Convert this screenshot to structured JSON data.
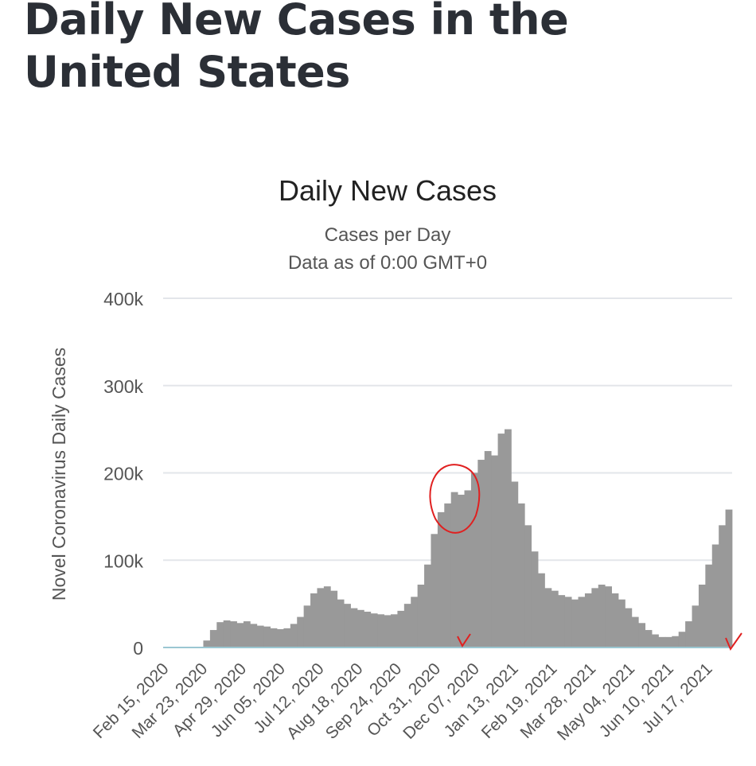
{
  "page": {
    "title": "Daily New Cases in the United States"
  },
  "annotations": {
    "highlight_color": "#e02020"
  },
  "chart_data": {
    "type": "bar",
    "title": "Daily New Cases",
    "subtitle_lines": [
      "Cases per Day",
      "Data as of 0:00 GMT+0"
    ],
    "xlabel": "",
    "ylabel": "Novel Coronavirus Daily Cases",
    "ylim": [
      0,
      400000
    ],
    "y_ticks": [
      0,
      100000,
      200000,
      300000,
      400000
    ],
    "y_tick_labels": [
      "0",
      "100k",
      "200k",
      "300k",
      "400k"
    ],
    "x_tick_labels": [
      "Feb 15, 2020",
      "Mar 23, 2020",
      "Apr 29, 2020",
      "Jun 05, 2020",
      "Jul 12, 2020",
      "Aug 18, 2020",
      "Sep 24, 2020",
      "Oct 31, 2020",
      "Dec 07, 2020",
      "Jan 13, 2021",
      "Feb 19, 2021",
      "Mar 28, 2021",
      "May 04, 2021",
      "Jun 10, 2021",
      "Jul 17, 2021"
    ],
    "x_tick_interval_days": 37,
    "bar_color": "#999999",
    "series": [
      {
        "name": "Daily Cases",
        "resolution": "weekly average",
        "start": "Feb 15, 2020",
        "values": [
          0,
          0,
          0,
          0,
          0,
          300,
          8000,
          20000,
          29000,
          31000,
          30000,
          28000,
          30000,
          27000,
          25000,
          24000,
          22000,
          21000,
          22000,
          27000,
          35000,
          48000,
          62000,
          68000,
          70000,
          65000,
          55000,
          50000,
          45000,
          43000,
          41000,
          39000,
          38000,
          37000,
          38000,
          42000,
          50000,
          58000,
          72000,
          95000,
          130000,
          155000,
          165000,
          178000,
          175000,
          180000,
          200000,
          215000,
          225000,
          220000,
          245000,
          250000,
          190000,
          165000,
          140000,
          110000,
          85000,
          68000,
          65000,
          60000,
          58000,
          55000,
          58000,
          62000,
          68000,
          72000,
          70000,
          62000,
          55000,
          45000,
          35000,
          28000,
          20000,
          15000,
          12000,
          12000,
          13000,
          18000,
          30000,
          48000,
          72000,
          95000,
          118000,
          140000,
          158000
        ]
      }
    ]
  }
}
